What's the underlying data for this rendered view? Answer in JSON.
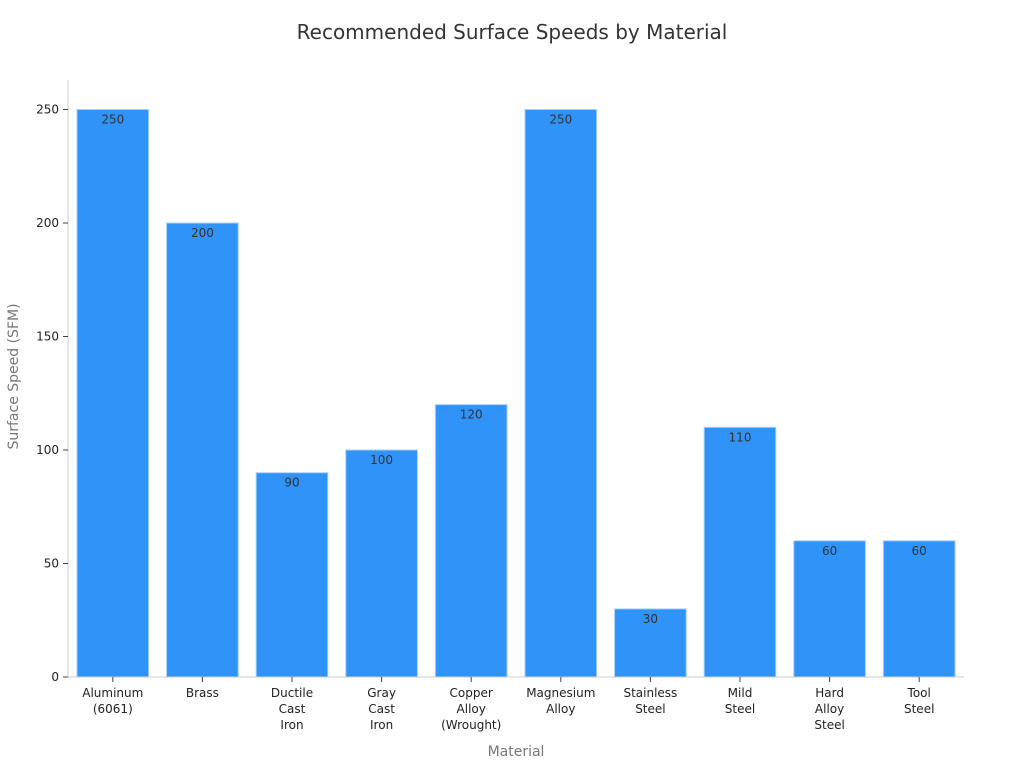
{
  "chart_data": {
    "type": "bar",
    "title": "Recommended Surface Speeds by Material",
    "xlabel": "Material",
    "ylabel": "Surface Speed (SFM)",
    "categories": [
      [
        "Aluminum",
        "(6061)"
      ],
      [
        "Brass"
      ],
      [
        "Ductile",
        "Cast",
        "Iron"
      ],
      [
        "Gray",
        "Cast",
        "Iron"
      ],
      [
        "Copper",
        "Alloy",
        "(Wrought)"
      ],
      [
        "Magnesium",
        "Alloy"
      ],
      [
        "Stainless",
        "Steel"
      ],
      [
        "Mild",
        "Steel"
      ],
      [
        "Hard",
        "Alloy",
        "Steel"
      ],
      [
        "Tool",
        "Steel"
      ]
    ],
    "values": [
      250,
      200,
      90,
      100,
      120,
      250,
      30,
      110,
      60,
      60
    ],
    "yticks": [
      0,
      50,
      100,
      150,
      200,
      250
    ],
    "ylim": [
      0,
      263
    ],
    "bar_color": "#2f93f8",
    "bar_edge_color": "#a8d2fb",
    "grid": false,
    "legend": "none"
  }
}
